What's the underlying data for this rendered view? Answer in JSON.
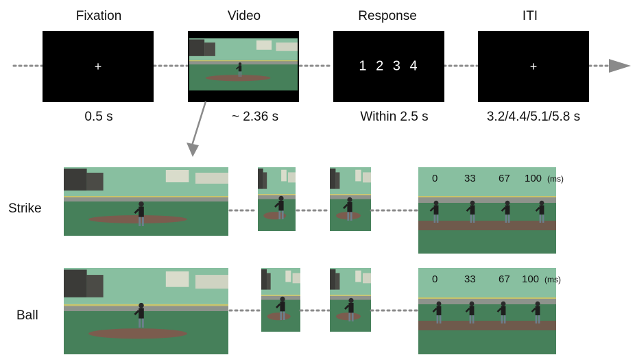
{
  "timeline": {
    "stages": [
      {
        "title": "Fixation",
        "duration": "0.5 s",
        "symbol": "+"
      },
      {
        "title": "Video",
        "duration": "~ 2.36 s"
      },
      {
        "title": "Response",
        "duration": "Within 2.5 s",
        "symbol": "1  2  3  4"
      },
      {
        "title": "ITI",
        "duration": "3.2/4.4/5.1/5.8 s",
        "symbol": "+"
      }
    ]
  },
  "conditions": [
    {
      "label": "Strike",
      "times": [
        "0",
        "33",
        "67",
        "100"
      ],
      "unit": "(ms)"
    },
    {
      "label": "Ball",
      "times": [
        "0",
        "33",
        "67",
        "100"
      ],
      "unit": "(ms)"
    }
  ],
  "colors": {
    "field_green": "#3f7a4f",
    "wall_green": "#7fb896",
    "dirt": "#7a5a4a",
    "connector": "#8a8a8a",
    "arrow": "#8a8a8a"
  }
}
